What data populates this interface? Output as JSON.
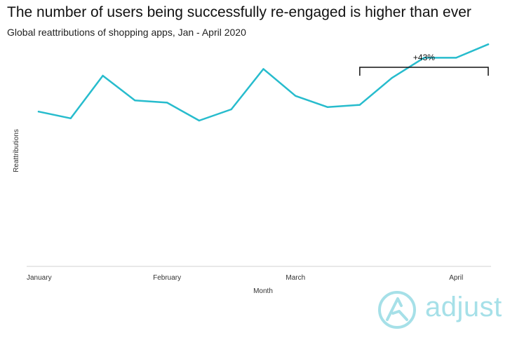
{
  "header": {
    "title": "The number of users being successfully re-engaged is higher than ever",
    "subtitle": "Global reattributions of shopping apps, Jan - April 2020"
  },
  "brand": {
    "logo_text": "adjust",
    "logo_icon": "adjust-logo-icon",
    "logo_color": "#a6e0e8"
  },
  "chart_data": {
    "type": "line",
    "title": "The number of users being successfully re-engaged is higher than ever",
    "subtitle": "Global reattributions of shopping apps, Jan - April 2020",
    "xlabel": "Month",
    "ylabel": "Reattributions",
    "x_tick_labels": [
      "January",
      "February",
      "March",
      "April"
    ],
    "x_tick_positions": [
      0,
      4,
      8,
      13
    ],
    "x": [
      0,
      1,
      2,
      3,
      4,
      5,
      6,
      7,
      8,
      9,
      10,
      11,
      12,
      13,
      14
    ],
    "series": [
      {
        "values": [
          69,
          66,
          85,
          74,
          73,
          65,
          70,
          88,
          76,
          71,
          72,
          84,
          93,
          93,
          99
        ],
        "color": "#27bccd"
      }
    ],
    "ylim": [
      0,
      100
    ],
    "grid": false,
    "annotation": {
      "text": "+43%",
      "from_x": 10,
      "to_x": 14
    }
  }
}
